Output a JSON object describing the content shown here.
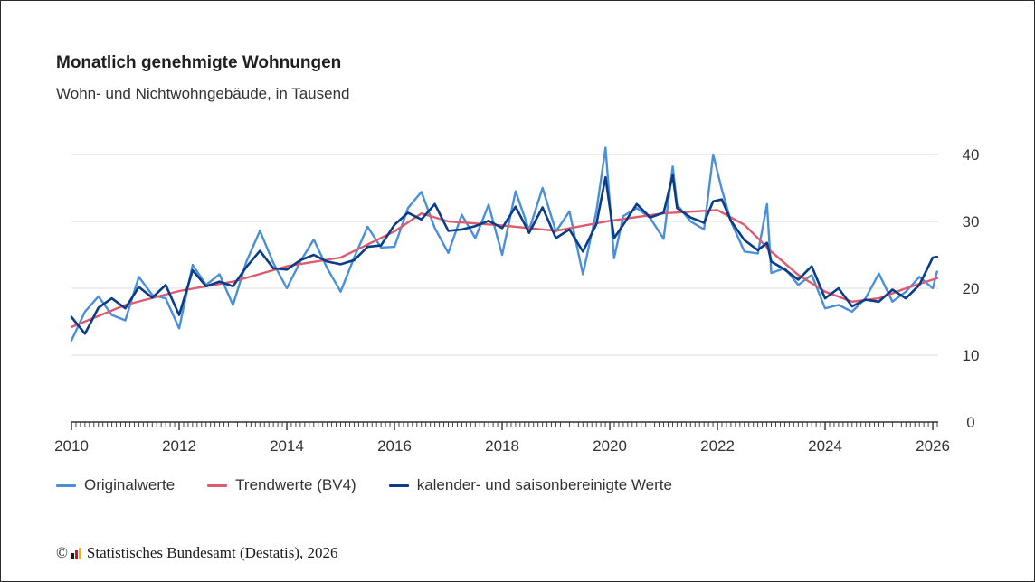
{
  "header": {
    "title": "Monatlich genehmigte Wohnungen",
    "subtitle": "Wohn- und Nichtwohngebäude, in Tausend"
  },
  "legend": {
    "items": [
      {
        "label": "Originalwerte",
        "color": "#4a8fdb"
      },
      {
        "label": "Trendwerte (BV4)",
        "color": "#e05a6e"
      },
      {
        "label": "kalender- und saisonbereinigte Werte",
        "color": "#0b3c87"
      }
    ]
  },
  "footer": {
    "copyright_symbol": "©",
    "logo_icon": "destatis-logo-icon",
    "source": "Statistisches Bundesamt (Destatis), 2026"
  },
  "chart_data": {
    "type": "line",
    "title": "Monatlich genehmigte Wohnungen",
    "subtitle": "Wohn- und Nichtwohngebäude, in Tausend",
    "xlabel": "",
    "ylabel": "",
    "xlim": [
      2010,
      2026.1
    ],
    "ylim": [
      0,
      40
    ],
    "x_ticks": [
      2010,
      2012,
      2014,
      2016,
      2018,
      2020,
      2022,
      2024,
      2026
    ],
    "y_ticks": [
      0,
      10,
      20,
      30,
      40
    ],
    "y_axis_position": "right",
    "grid": "horizontal",
    "legend_position": "bottom-left",
    "x_unit": "year (monthly observations)",
    "series": [
      {
        "name": "Originalwerte",
        "color": "#4a8fdb",
        "x": [
          2010,
          2010.25,
          2010.5,
          2010.75,
          2011,
          2011.25,
          2011.5,
          2011.75,
          2012,
          2012.25,
          2012.5,
          2012.75,
          2013,
          2013.25,
          2013.5,
          2013.75,
          2014,
          2014.25,
          2014.5,
          2014.75,
          2015,
          2015.25,
          2015.5,
          2015.75,
          2016,
          2016.25,
          2016.5,
          2016.75,
          2017,
          2017.25,
          2017.5,
          2017.75,
          2018,
          2018.25,
          2018.5,
          2018.75,
          2019,
          2019.25,
          2019.5,
          2019.75,
          2019.92,
          2020.08,
          2020.25,
          2020.5,
          2020.75,
          2021,
          2021.17,
          2021.25,
          2021.5,
          2021.75,
          2021.92,
          2022.08,
          2022.25,
          2022.5,
          2022.75,
          2022.92,
          2023,
          2023.25,
          2023.5,
          2023.75,
          2024,
          2024.25,
          2024.5,
          2024.75,
          2025,
          2025.25,
          2025.5,
          2025.75,
          2026,
          2026.08
        ],
        "values": [
          12.2,
          16.5,
          18.8,
          16.0,
          15.2,
          21.7,
          19.0,
          18.5,
          14.0,
          23.5,
          20.5,
          22.1,
          17.5,
          24.0,
          28.6,
          23.8,
          20.0,
          24.0,
          27.3,
          23.0,
          19.5,
          24.6,
          29.2,
          26.1,
          26.2,
          32.0,
          34.4,
          29.0,
          25.3,
          31.0,
          27.5,
          32.5,
          25.0,
          34.5,
          28.7,
          35.0,
          28.5,
          31.5,
          22.1,
          31.5,
          41.0,
          24.5,
          30.8,
          32.0,
          30.5,
          27.4,
          38.2,
          32.5,
          30.0,
          28.8,
          40.0,
          34.8,
          30.0,
          25.5,
          25.2,
          32.6,
          22.3,
          23.0,
          20.5,
          22.0,
          17.0,
          17.5,
          16.5,
          18.5,
          22.2,
          18.0,
          19.5,
          21.7,
          20.0,
          22.5
        ]
      },
      {
        "name": "Trendwerte (BV4)",
        "color": "#e05a6e",
        "x": [
          2010,
          2011,
          2012,
          2013,
          2014,
          2015,
          2016,
          2016.5,
          2017,
          2018,
          2019,
          2020,
          2021,
          2022,
          2022.5,
          2023,
          2023.5,
          2024,
          2024.5,
          2025,
          2025.5,
          2026,
          2026.08
        ],
        "values": [
          14.2,
          17.5,
          19.6,
          21.0,
          23.3,
          24.6,
          28.5,
          31.2,
          30.0,
          29.4,
          28.6,
          30.1,
          31.2,
          31.7,
          29.5,
          25.5,
          22.0,
          19.5,
          18.0,
          18.5,
          20.0,
          21.3,
          21.5
        ]
      },
      {
        "name": "kalender- und saisonbereinigte Werte",
        "color": "#0b3c87",
        "x": [
          2010,
          2010.25,
          2010.5,
          2010.75,
          2011,
          2011.25,
          2011.5,
          2011.75,
          2012,
          2012.25,
          2012.5,
          2012.75,
          2013,
          2013.25,
          2013.5,
          2013.75,
          2014,
          2014.25,
          2014.5,
          2014.75,
          2015,
          2015.25,
          2015.5,
          2015.75,
          2016,
          2016.25,
          2016.5,
          2016.75,
          2017,
          2017.25,
          2017.5,
          2017.75,
          2018,
          2018.25,
          2018.5,
          2018.75,
          2019,
          2019.25,
          2019.5,
          2019.75,
          2019.92,
          2020.08,
          2020.25,
          2020.5,
          2020.75,
          2021,
          2021.17,
          2021.25,
          2021.5,
          2021.75,
          2021.92,
          2022.08,
          2022.25,
          2022.5,
          2022.75,
          2022.92,
          2023,
          2023.25,
          2023.5,
          2023.75,
          2024,
          2024.25,
          2024.5,
          2024.75,
          2025,
          2025.25,
          2025.5,
          2025.75,
          2026,
          2026.08
        ],
        "values": [
          15.7,
          13.2,
          17.1,
          18.5,
          17.0,
          20.2,
          18.6,
          20.5,
          16.0,
          22.7,
          20.3,
          21.0,
          20.3,
          23.2,
          25.6,
          23.0,
          22.8,
          24.2,
          25.0,
          24.0,
          23.6,
          24.2,
          26.2,
          26.4,
          29.5,
          31.3,
          30.3,
          32.6,
          28.6,
          28.8,
          29.3,
          30.1,
          29.0,
          32.2,
          28.3,
          32.1,
          27.5,
          28.8,
          25.5,
          29.6,
          36.6,
          27.5,
          29.5,
          32.6,
          30.6,
          31.3,
          36.9,
          32.0,
          30.6,
          29.8,
          33.0,
          33.3,
          30.1,
          27.2,
          25.7,
          26.8,
          24.0,
          22.8,
          21.3,
          23.3,
          18.5,
          20.0,
          17.3,
          18.3,
          18.0,
          19.8,
          18.5,
          20.5,
          24.6,
          24.7
        ]
      }
    ]
  }
}
